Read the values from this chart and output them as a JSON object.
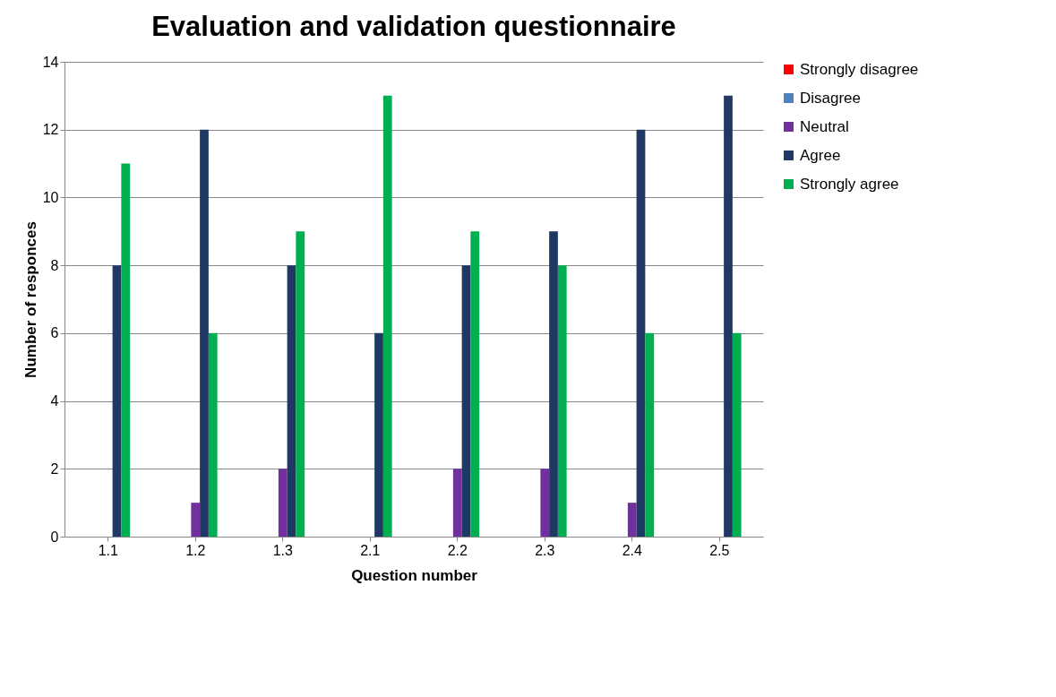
{
  "chart_data": {
    "type": "bar",
    "title": "Evaluation and validation questionnaire",
    "xlabel": "Question number",
    "ylabel": "Number of responces",
    "categories": [
      "1.1",
      "1.2",
      "1.3",
      "2.1",
      "2.2",
      "2.3",
      "2.4",
      "2.5"
    ],
    "series": [
      {
        "name": "Strongly disagree",
        "color": "#ff0000",
        "values": [
          0,
          0,
          0,
          0,
          0,
          0,
          0,
          0
        ]
      },
      {
        "name": "Disagree",
        "color": "#4f81bd",
        "values": [
          0,
          0,
          0,
          0,
          0,
          0,
          0,
          0
        ]
      },
      {
        "name": "Neutral",
        "color": "#7030a0",
        "values": [
          0,
          1,
          2,
          0,
          2,
          2,
          1,
          0
        ]
      },
      {
        "name": "Agree",
        "color": "#1f3864",
        "values": [
          8,
          12,
          8,
          6,
          8,
          9,
          12,
          13
        ]
      },
      {
        "name": "Strongly agree",
        "color": "#00b050",
        "values": [
          11,
          6,
          9,
          13,
          9,
          8,
          6,
          6
        ]
      }
    ],
    "ylim": [
      0,
      14
    ],
    "yticks": [
      0,
      2,
      4,
      6,
      8,
      10,
      12,
      14
    ],
    "grid": "y",
    "legend": "right"
  }
}
